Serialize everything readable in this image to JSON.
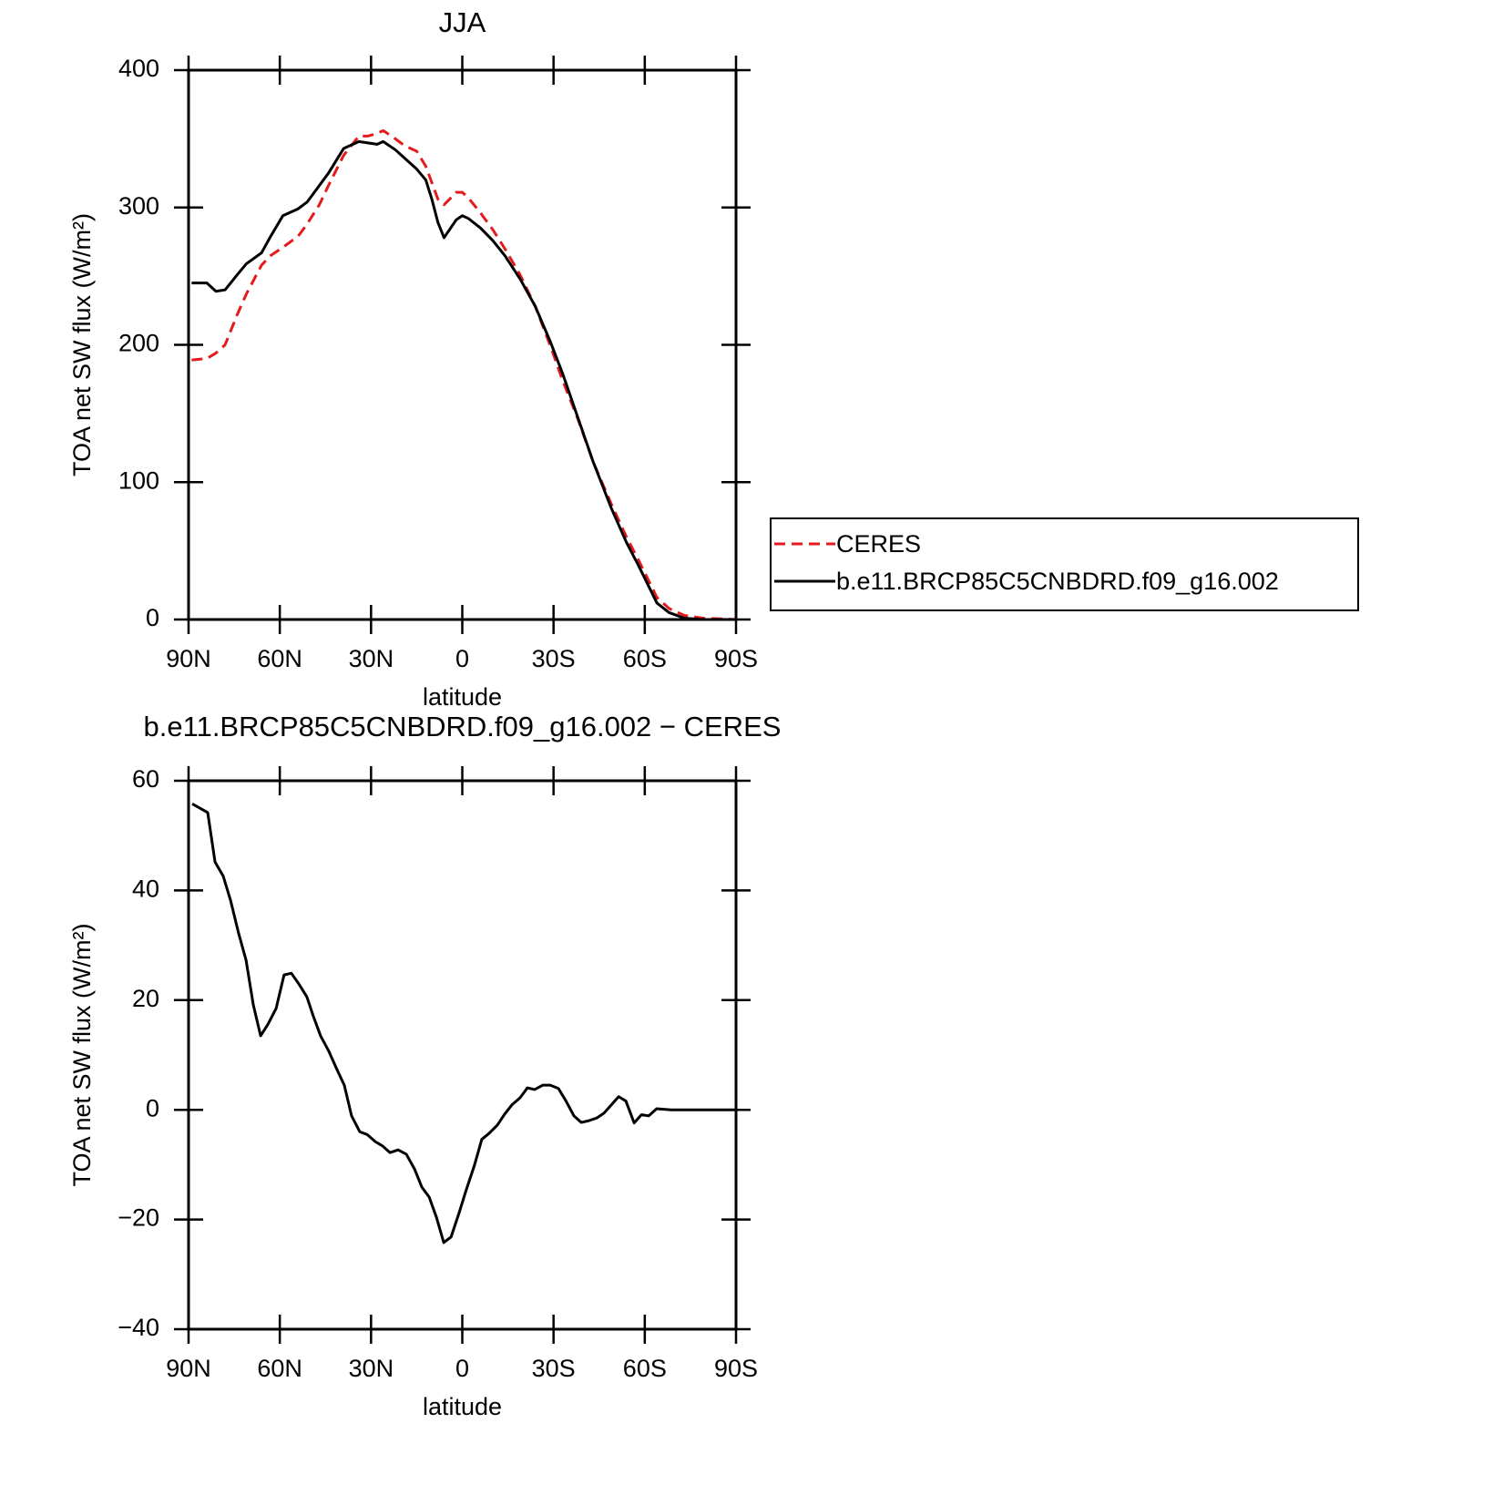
{
  "chart_data": [
    {
      "type": "line",
      "title": "JJA",
      "xlabel": "latitude",
      "ylabel": "TOA net SW flux (W/m²)",
      "x": [
        89,
        84,
        81,
        78,
        74,
        71,
        66,
        63,
        59,
        54,
        51,
        47,
        44,
        39,
        34,
        31,
        28,
        26,
        22,
        19,
        15,
        12,
        10,
        8,
        6,
        2,
        0,
        -2,
        -6,
        -10,
        -14,
        -19,
        -24,
        -29,
        -33,
        -38,
        -43,
        -49,
        -54,
        -58,
        -64,
        -68,
        -73,
        -79,
        -90
      ],
      "series": [
        {
          "name": "CERES",
          "color": "#e41a1c",
          "linestyle": "dashed",
          "values": [
            189,
            190,
            194,
            200,
            222,
            237,
            258,
            265,
            271,
            279,
            288,
            302,
            316,
            338,
            352,
            352,
            354,
            356,
            350,
            345,
            341,
            330,
            318,
            306,
            302,
            311,
            311,
            307,
            296,
            284,
            270,
            251,
            228,
            199,
            174,
            146,
            115,
            84,
            60,
            43,
            16,
            8,
            3,
            1,
            0
          ]
        },
        {
          "name": "b.e11.BRCP85C5CNBDRD.f09_g16.002",
          "color": "#000000",
          "linestyle": "solid",
          "values": [
            245,
            245,
            239,
            240,
            251,
            259,
            267,
            279,
            294,
            299,
            304,
            316,
            325,
            343,
            348,
            347,
            346,
            348,
            342,
            336,
            328,
            320,
            306,
            289,
            278,
            291,
            294,
            292,
            285,
            276,
            265,
            248,
            228,
            202,
            179,
            147,
            115,
            81,
            56,
            39,
            12,
            5,
            1,
            0,
            0
          ]
        }
      ],
      "xlim": [
        90,
        -90
      ],
      "xticks": [
        {
          "value": 90,
          "label": "90N"
        },
        {
          "value": 60,
          "label": "60N"
        },
        {
          "value": 30,
          "label": "30N"
        },
        0,
        {
          "value": -30,
          "label": "30S"
        },
        {
          "value": -60,
          "label": "60S"
        },
        {
          "value": -90,
          "label": "90S"
        }
      ],
      "ylim": [
        0,
        400
      ],
      "yticks": [
        0,
        100,
        200,
        300,
        400
      ],
      "grid": false,
      "legend": "outside-right"
    },
    {
      "type": "line",
      "title": "b.e11.BRCP85C5CNBDRD.f09_g16.002 − CERES",
      "xlabel": "latitude",
      "ylabel": "TOA net SW flux (W/m²)",
      "x": [
        88.8,
        83.7,
        81.3,
        78.6,
        76.2,
        73.5,
        71.1,
        68.7,
        66.3,
        63.9,
        61.2,
        58.6,
        56.2,
        53.8,
        51.1,
        49,
        46.6,
        43.9,
        41.5,
        38.8,
        36.4,
        33.7,
        31.3,
        28.6,
        26.2,
        23.8,
        21.1,
        18.4,
        15.7,
        13.3,
        10.9,
        8.5,
        6.1,
        3.7,
        1,
        -1.3,
        -4,
        -6.4,
        -8.8,
        -11.5,
        -13.9,
        -16.3,
        -19,
        -21.4,
        -23.8,
        -26.5,
        -28.9,
        -31.6,
        -34,
        -36.7,
        -39.1,
        -41.5,
        -44.2,
        -46.6,
        -49,
        -51.4,
        -53.8,
        -56.5,
        -58.9,
        -61.3,
        -63.9,
        -68.7,
        -90
      ],
      "color": "#000000",
      "values": [
        55.8,
        54.2,
        45.2,
        42.6,
        38.2,
        32.1,
        27.3,
        19.1,
        13.5,
        15.6,
        18.5,
        24.6,
        24.9,
        23,
        20.6,
        17.1,
        13.5,
        10.7,
        7.7,
        4.5,
        -1.1,
        -4,
        -4.5,
        -5.8,
        -6.6,
        -7.8,
        -7.3,
        -8.1,
        -10.8,
        -14.1,
        -15.9,
        -19.6,
        -24.2,
        -23.2,
        -18.7,
        -14.6,
        -10.1,
        -5.4,
        -4.3,
        -2.8,
        -0.8,
        0.9,
        2.2,
        4,
        3.7,
        4.5,
        4.5,
        3.9,
        1.7,
        -1.1,
        -2.3,
        -2,
        -1.5,
        -0.6,
        0.9,
        2.4,
        1.6,
        -2.4,
        -0.9,
        -1.1,
        0.2,
        0,
        0
      ],
      "xlim": [
        90,
        -90
      ],
      "xticks": [
        {
          "value": 90,
          "label": "90N"
        },
        {
          "value": 60,
          "label": "60N"
        },
        {
          "value": 30,
          "label": "30N"
        },
        0,
        {
          "value": -30,
          "label": "30S"
        },
        {
          "value": -60,
          "label": "60S"
        },
        {
          "value": -90,
          "label": "90S"
        }
      ],
      "ylim": [
        -40,
        60
      ],
      "yticks": [
        {
          "value": -40,
          "label": "−40"
        },
        {
          "value": -20,
          "label": "−20"
        },
        0,
        20,
        40,
        60
      ],
      "grid": false
    }
  ]
}
